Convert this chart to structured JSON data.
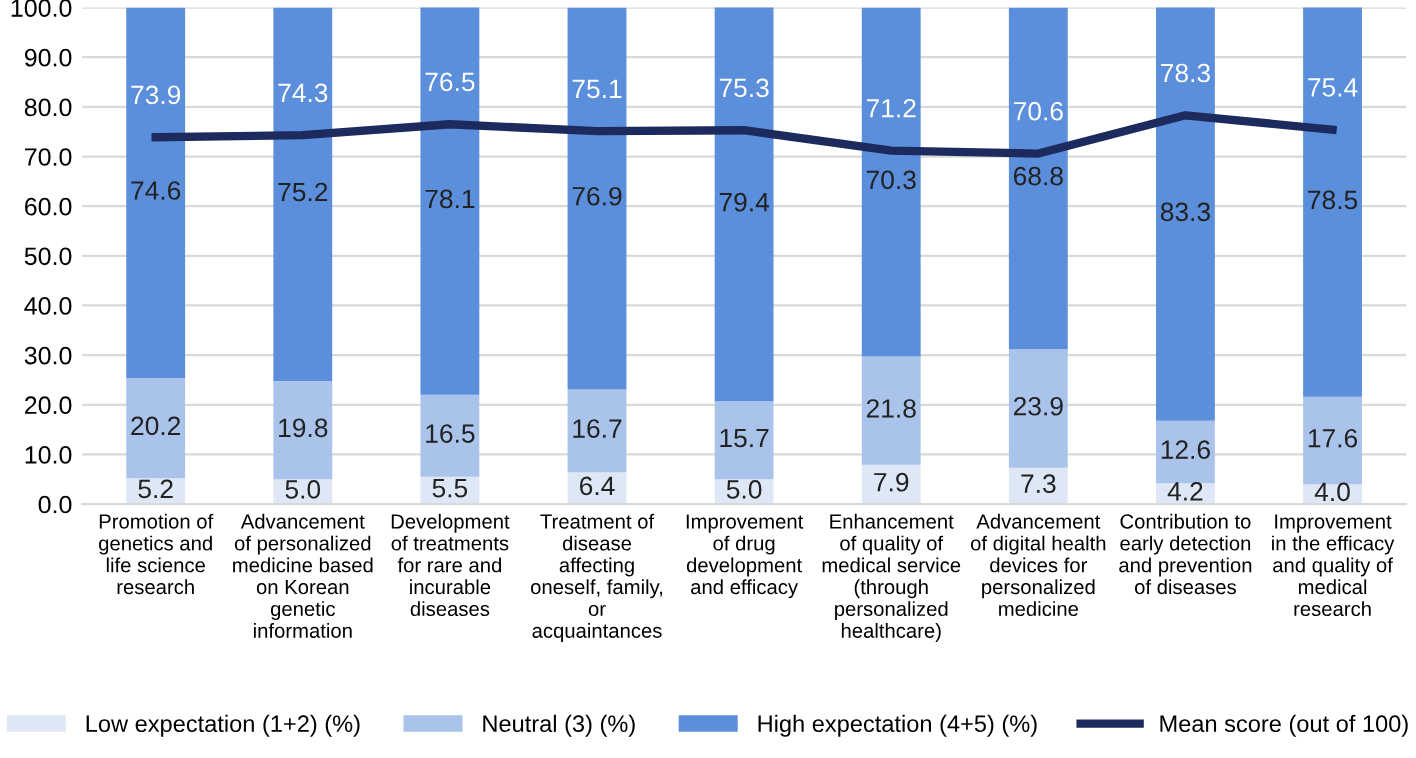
{
  "chart_data": {
    "type": "bar",
    "stacked": true,
    "categories": [
      "Promotion of\ngenetics and\nlife science\nresearch",
      "Advancement\nof personalized\nmedicine based\non Korean\ngenetic\ninformation",
      "Development\nof treatments\nfor rare and\nincurable\ndiseases",
      "Treatment of\ndisease\naffecting\noneself, family,\nor\nacquaintances",
      "Improvement\nof drug\ndevelopment\nand efficacy",
      "Enhancement\nof quality of\nmedical service\n(through\npersonalized\nhealthcare)",
      "Advancement\nof digital health\ndevices for\npersonalized\nmedicine",
      "Contribution to\nearly detection\nand prevention\nof diseases",
      "Improvement\nin the efficacy\nand quality of\nmedical\nresearch"
    ],
    "series": [
      {
        "name": "Low expectation (1+2) (%)",
        "color": "#dde7f5",
        "values": [
          5.2,
          5.0,
          5.5,
          6.4,
          5.0,
          7.9,
          7.3,
          4.2,
          4.0
        ],
        "value_labels": [
          "5.2",
          "5.0",
          "5.5",
          "6.4",
          "5.0",
          "7.9",
          "7.3",
          "4.2",
          "4.0"
        ]
      },
      {
        "name": "Neutral (3) (%)",
        "color": "#a9c3ea",
        "values": [
          20.2,
          19.8,
          16.5,
          16.7,
          15.7,
          21.8,
          23.9,
          12.6,
          17.6
        ],
        "value_labels": [
          "20.2",
          "19.8",
          "16.5",
          "16.7",
          "15.7",
          "21.8",
          "23.9",
          "12.6",
          "17.6"
        ]
      },
      {
        "name": "High expectation (4+5) (%)",
        "color": "#5b8edb",
        "values": [
          74.6,
          75.2,
          78.1,
          76.9,
          79.4,
          70.3,
          68.8,
          83.3,
          78.5
        ],
        "value_labels": [
          "74.6",
          "75.2",
          "78.1",
          "76.9",
          "79.4",
          "70.3",
          "68.8",
          "83.3",
          "78.5"
        ]
      },
      {
        "name": "Mean score (out of 100)",
        "type": "line",
        "color": "#1c2a5e",
        "values": [
          73.9,
          74.3,
          76.5,
          75.1,
          75.3,
          71.2,
          70.6,
          78.3,
          75.4
        ],
        "value_labels": [
          "73.9",
          "74.3",
          "76.5",
          "75.1",
          "75.3",
          "71.2",
          "70.6",
          "78.3",
          "75.4"
        ]
      }
    ],
    "ylim": [
      0,
      100
    ],
    "yticks": [
      {
        "value": 0,
        "label": "0.0"
      },
      {
        "value": 10,
        "label": "10.0"
      },
      {
        "value": 20,
        "label": "20.0"
      },
      {
        "value": 30,
        "label": "30.0"
      },
      {
        "value": 40,
        "label": "40.0"
      },
      {
        "value": 50,
        "label": "50.0"
      },
      {
        "value": 60,
        "label": "60.0"
      },
      {
        "value": 70,
        "label": "70.0"
      },
      {
        "value": 80,
        "label": "80.0"
      },
      {
        "value": 90,
        "label": "90.0"
      },
      {
        "value": 100,
        "label": "100.0"
      }
    ],
    "grid": "y",
    "legend": "bottom",
    "marker": "none",
    "line_style": "solid"
  }
}
